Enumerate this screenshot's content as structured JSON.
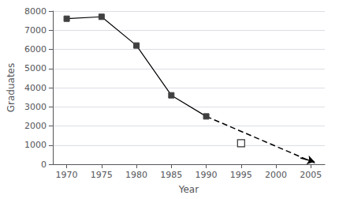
{
  "chart_data": {
    "type": "line",
    "xlabel": "Year",
    "ylabel": "Graduates",
    "xlim": [
      1968,
      2007
    ],
    "ylim": [
      0,
      8000
    ],
    "xticks": [
      1970,
      1975,
      1980,
      1985,
      1990,
      1995,
      2000,
      2005
    ],
    "yticks": [
      0,
      1000,
      2000,
      3000,
      4000,
      5000,
      6000,
      7000,
      8000
    ],
    "grid": true,
    "series": [
      {
        "type": "line",
        "x": [
          1970,
          1975,
          1980,
          1985,
          1990
        ],
        "values": [
          7600,
          7700,
          6200,
          3600,
          2500
        ],
        "color": "#000000",
        "colors": [
          "#404040",
          "#404040",
          "#404040",
          "#404040",
          "#404040"
        ],
        "marker": "square",
        "line_style": "solid"
      },
      {
        "type": "line",
        "x": [
          1990,
          2006
        ],
        "values": [
          2500,
          0
        ],
        "color": "#000000",
        "marker": "none",
        "line_style": "dashed"
      },
      {
        "type": "scatter",
        "x": [
          1995
        ],
        "values": [
          1100
        ],
        "color": "#000000",
        "marker": "open_square"
      }
    ],
    "arrow": {
      "x": [
        2003.5,
        2005.5
      ],
      "y": [
        330,
        130
      ],
      "color": "#000000"
    }
  }
}
